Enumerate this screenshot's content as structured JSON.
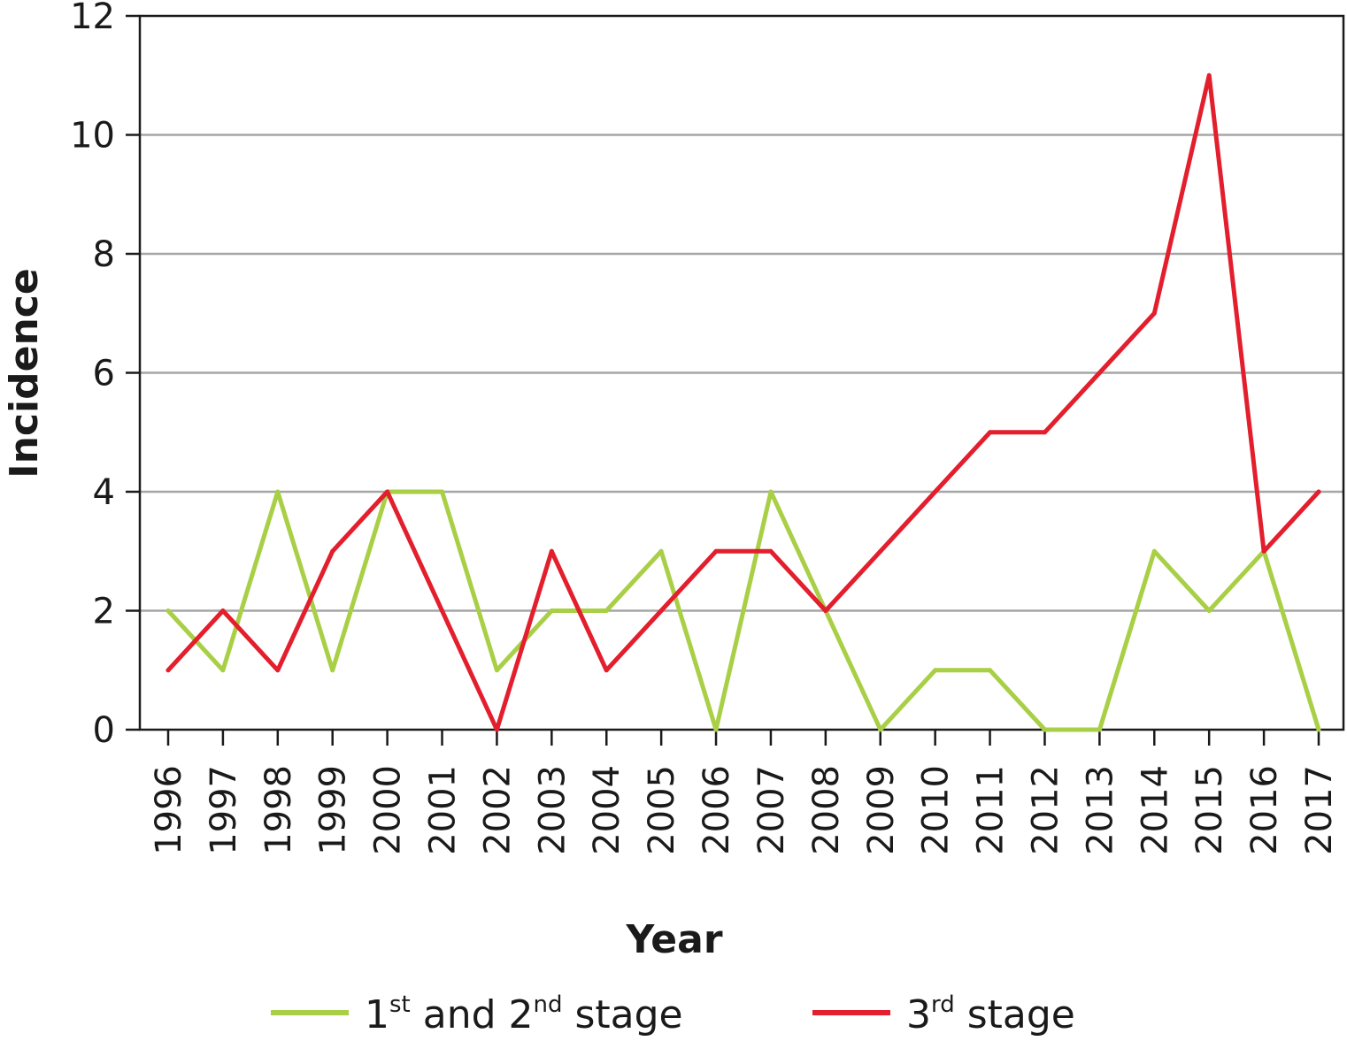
{
  "chart_data": {
    "type": "line",
    "title": "",
    "xlabel": "Year",
    "ylabel": "Incidence",
    "ylim": [
      0,
      12
    ],
    "yticks": [
      "0",
      "2",
      "4",
      "6",
      "8",
      "10",
      "12"
    ],
    "grid": "horizontal",
    "legend_position": "bottom",
    "categories": [
      "1996",
      "1997",
      "1998",
      "1999",
      "2000",
      "2001",
      "2002",
      "2003",
      "2004",
      "2005",
      "2006",
      "2007",
      "2008",
      "2009",
      "2010",
      "2011",
      "2012",
      "2013",
      "2014",
      "2015",
      "2016",
      "2017"
    ],
    "series": [
      {
        "name": "1st and 2nd stage",
        "legend": {
          "pre": "1",
          "sup1": "st",
          "mid": " and 2",
          "sup2": "nd",
          "post": " stage"
        },
        "color": "#a8cf45",
        "values": [
          2,
          1,
          4,
          1,
          4,
          4,
          1,
          2,
          2,
          3,
          0,
          4,
          2,
          0,
          1,
          1,
          0,
          0,
          3,
          2,
          3,
          0
        ]
      },
      {
        "name": "3rd stage",
        "legend": {
          "pre": "3",
          "sup1": "rd",
          "mid": " stage",
          "sup2": "",
          "post": ""
        },
        "color": "#e31e2d",
        "values": [
          1,
          2,
          1,
          3,
          4,
          2,
          0,
          3,
          1,
          2,
          3,
          3,
          2,
          3,
          4,
          5,
          5,
          6,
          7,
          11,
          3,
          4
        ]
      }
    ]
  }
}
